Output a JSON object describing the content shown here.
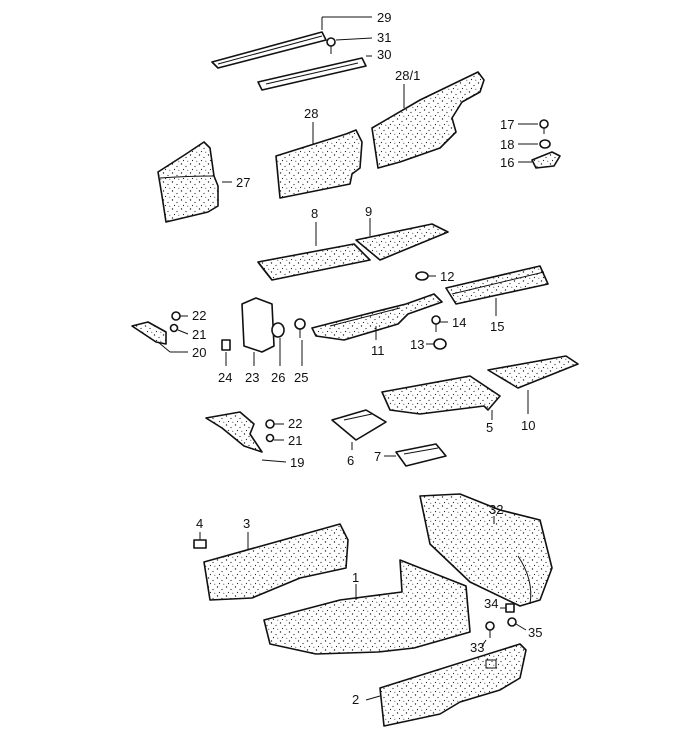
{
  "callouts": {
    "c29": "29",
    "c31": "31",
    "c30": "30",
    "c28_1": "28/1",
    "c28": "28",
    "c17": "17",
    "c18": "18",
    "c16": "16",
    "c27": "27",
    "c8": "8",
    "c9": "9",
    "c12": "12",
    "c22a": "22",
    "c21a": "21",
    "c20": "20",
    "c14": "14",
    "c15": "15",
    "c13": "13",
    "c11": "11",
    "c24": "24",
    "c23": "23",
    "c26": "26",
    "c25": "25",
    "c10": "10",
    "c5": "5",
    "c22b": "22",
    "c21b": "21",
    "c19": "19",
    "c6": "6",
    "c7": "7",
    "c32": "32",
    "c4": "4",
    "c3": "3",
    "c1": "1",
    "c34": "34",
    "c35": "35",
    "c33": "33",
    "c2": "2"
  },
  "colors": {
    "line": "#111111",
    "background": "#ffffff"
  }
}
